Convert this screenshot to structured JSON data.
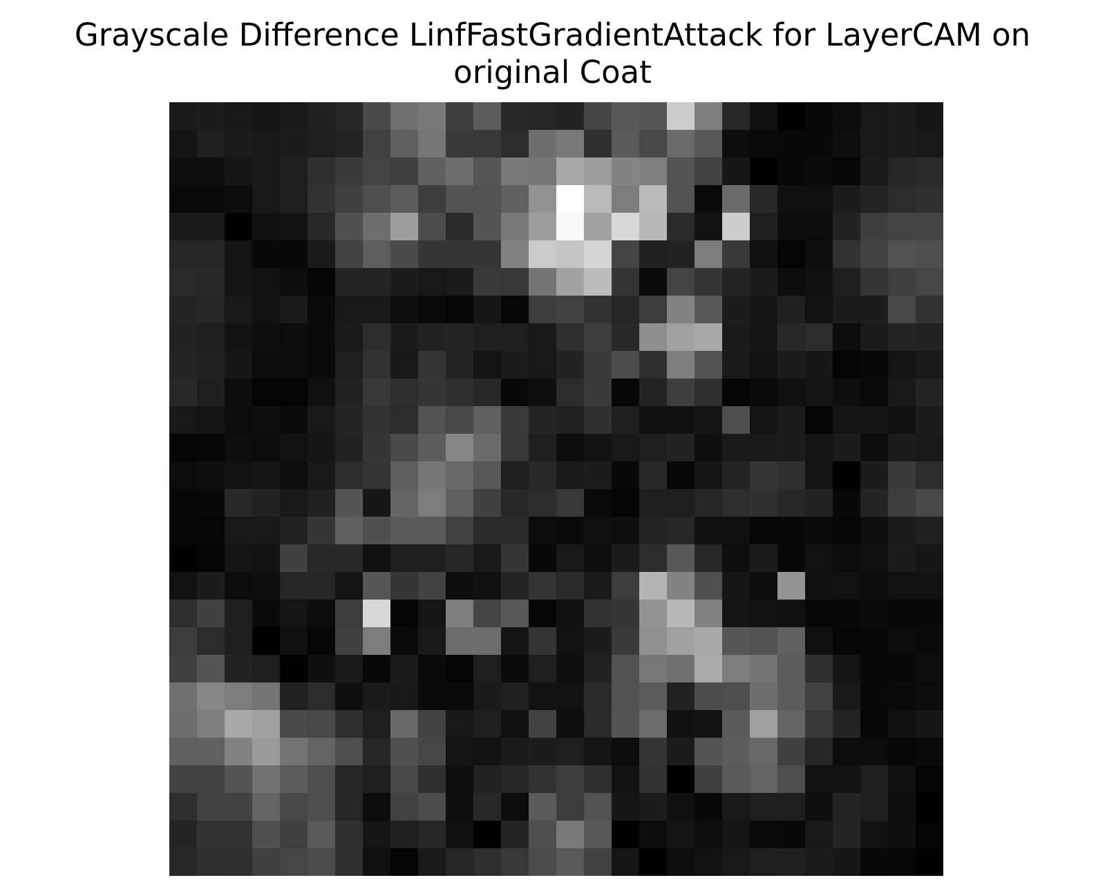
{
  "chart_data": {
    "type": "heatmap",
    "title_lines": [
      "Grayscale Difference LinfFastGradientAttack for LayerCAM on",
      "original Coat"
    ],
    "colormap": "gray",
    "axes": "off",
    "rows": 28,
    "cols": 28,
    "values": [
      [
        26,
        28,
        24,
        22,
        25,
        32,
        38,
        74,
        112,
        120,
        62,
        92,
        40,
        37,
        34,
        68,
        88,
        86,
        204,
        127,
        40,
        16,
        2,
        8,
        12,
        24,
        28,
        22
      ],
      [
        20,
        30,
        26,
        24,
        28,
        30,
        36,
        66,
        96,
        118,
        58,
        56,
        44,
        110,
        122,
        46,
        90,
        72,
        106,
        88,
        12,
        10,
        8,
        8,
        14,
        24,
        28,
        24
      ],
      [
        14,
        14,
        22,
        24,
        30,
        46,
        58,
        68,
        64,
        96,
        110,
        86,
        122,
        118,
        168,
        158,
        132,
        128,
        84,
        66,
        22,
        0,
        8,
        10,
        6,
        26,
        38,
        42
      ],
      [
        10,
        10,
        12,
        24,
        30,
        50,
        64,
        78,
        92,
        62,
        84,
        82,
        96,
        146,
        255,
        186,
        124,
        186,
        82,
        10,
        106,
        40,
        16,
        16,
        28,
        36,
        44,
        48
      ],
      [
        26,
        26,
        2,
        16,
        18,
        40,
        80,
        110,
        158,
        76,
        42,
        84,
        120,
        158,
        248,
        162,
        216,
        184,
        42,
        18,
        204,
        30,
        12,
        12,
        34,
        62,
        68,
        68
      ],
      [
        38,
        38,
        20,
        8,
        6,
        26,
        66,
        94,
        74,
        54,
        54,
        54,
        130,
        202,
        196,
        214,
        68,
        32,
        34,
        124,
        56,
        16,
        4,
        14,
        50,
        66,
        82,
        78
      ],
      [
        42,
        40,
        20,
        18,
        12,
        4,
        36,
        36,
        28,
        24,
        26,
        58,
        56,
        116,
        162,
        188,
        52,
        10,
        68,
        52,
        36,
        28,
        12,
        16,
        30,
        52,
        64,
        70
      ],
      [
        36,
        38,
        24,
        18,
        26,
        10,
        24,
        24,
        14,
        10,
        6,
        22,
        6,
        62,
        66,
        50,
        38,
        60,
        130,
        88,
        28,
        22,
        32,
        18,
        28,
        28,
        72,
        50
      ],
      [
        34,
        30,
        18,
        14,
        12,
        10,
        26,
        44,
        28,
        34,
        36,
        30,
        30,
        24,
        46,
        62,
        40,
        142,
        160,
        168,
        26,
        22,
        40,
        44,
        12,
        26,
        36,
        34
      ],
      [
        36,
        34,
        22,
        12,
        12,
        10,
        30,
        50,
        24,
        52,
        36,
        20,
        28,
        24,
        34,
        58,
        76,
        46,
        126,
        82,
        26,
        18,
        28,
        22,
        4,
        8,
        20,
        26
      ],
      [
        40,
        30,
        12,
        4,
        4,
        16,
        34,
        56,
        46,
        54,
        48,
        40,
        8,
        14,
        44,
        58,
        6,
        36,
        62,
        46,
        4,
        10,
        16,
        20,
        14,
        10,
        24,
        36
      ],
      [
        24,
        20,
        12,
        14,
        10,
        24,
        36,
        50,
        44,
        82,
        72,
        96,
        58,
        36,
        34,
        48,
        30,
        16,
        16,
        20,
        78,
        20,
        28,
        4,
        20,
        20,
        16,
        28
      ],
      [
        4,
        6,
        14,
        12,
        18,
        22,
        34,
        54,
        74,
        92,
        134,
        106,
        56,
        30,
        12,
        18,
        24,
        30,
        34,
        14,
        26,
        26,
        28,
        20,
        28,
        12,
        28,
        24
      ],
      [
        12,
        14,
        18,
        20,
        14,
        24,
        44,
        52,
        94,
        118,
        104,
        88,
        30,
        40,
        26,
        28,
        8,
        40,
        8,
        22,
        36,
        54,
        48,
        20,
        2,
        28,
        58,
        44
      ],
      [
        6,
        8,
        40,
        34,
        24,
        32,
        84,
        22,
        100,
        124,
        96,
        64,
        40,
        44,
        56,
        10,
        4,
        30,
        30,
        38,
        46,
        48,
        40,
        34,
        8,
        36,
        62,
        72
      ],
      [
        6,
        6,
        24,
        24,
        34,
        54,
        96,
        80,
        90,
        90,
        66,
        42,
        42,
        12,
        10,
        16,
        14,
        36,
        38,
        16,
        16,
        6,
        8,
        10,
        6,
        14,
        26,
        32
      ],
      [
        2,
        4,
        20,
        18,
        64,
        40,
        40,
        16,
        30,
        30,
        38,
        26,
        54,
        8,
        24,
        14,
        28,
        44,
        88,
        40,
        14,
        28,
        8,
        18,
        12,
        16,
        28,
        22
      ],
      [
        18,
        28,
        12,
        14,
        38,
        38,
        20,
        86,
        54,
        66,
        12,
        16,
        36,
        52,
        42,
        26,
        60,
        180,
        132,
        80,
        22,
        12,
        148,
        16,
        18,
        12,
        18,
        18
      ],
      [
        46,
        64,
        30,
        10,
        20,
        12,
        60,
        216,
        4,
        20,
        126,
        68,
        88,
        6,
        16,
        50,
        54,
        146,
        184,
        130,
        20,
        18,
        16,
        8,
        8,
        10,
        8,
        8
      ],
      [
        60,
        44,
        30,
        0,
        16,
        6,
        64,
        124,
        10,
        24,
        108,
        108,
        20,
        52,
        18,
        28,
        58,
        144,
        160,
        168,
        86,
        82,
        96,
        16,
        6,
        8,
        12,
        10
      ],
      [
        64,
        84,
        34,
        30,
        2,
        14,
        26,
        8,
        26,
        10,
        4,
        30,
        10,
        30,
        14,
        34,
        82,
        120,
        112,
        170,
        124,
        116,
        92,
        48,
        20,
        8,
        8,
        14
      ],
      [
        112,
        134,
        124,
        116,
        34,
        44,
        14,
        26,
        24,
        10,
        10,
        26,
        32,
        18,
        18,
        42,
        82,
        92,
        34,
        76,
        78,
        110,
        92,
        66,
        24,
        8,
        10,
        12
      ],
      [
        110,
        126,
        168,
        160,
        74,
        72,
        46,
        30,
        104,
        66,
        24,
        30,
        16,
        66,
        14,
        42,
        84,
        108,
        16,
        18,
        90,
        160,
        100,
        56,
        36,
        6,
        16,
        22
      ],
      [
        96,
        96,
        130,
        154,
        116,
        100,
        78,
        38,
        80,
        70,
        20,
        18,
        26,
        28,
        30,
        20,
        12,
        52,
        28,
        84,
        92,
        104,
        64,
        38,
        12,
        12,
        6,
        10
      ],
      [
        66,
        66,
        84,
        114,
        92,
        78,
        38,
        30,
        72,
        48,
        14,
        34,
        38,
        50,
        62,
        48,
        18,
        50,
        0,
        64,
        90,
        98,
        78,
        18,
        18,
        30,
        16,
        4
      ],
      [
        46,
        66,
        66,
        100,
        72,
        78,
        38,
        12,
        66,
        76,
        14,
        40,
        12,
        90,
        60,
        82,
        22,
        28,
        16,
        8,
        24,
        30,
        30,
        14,
        36,
        30,
        14,
        0
      ],
      [
        36,
        50,
        50,
        80,
        64,
        90,
        48,
        20,
        32,
        38,
        16,
        2,
        36,
        78,
        122,
        88,
        2,
        12,
        20,
        14,
        20,
        10,
        8,
        24,
        36,
        18,
        14,
        4
      ],
      [
        40,
        46,
        48,
        64,
        70,
        76,
        48,
        16,
        4,
        26,
        38,
        46,
        56,
        76,
        90,
        66,
        20,
        0,
        14,
        18,
        24,
        30,
        32,
        28,
        22,
        8,
        6,
        2
      ]
    ]
  }
}
